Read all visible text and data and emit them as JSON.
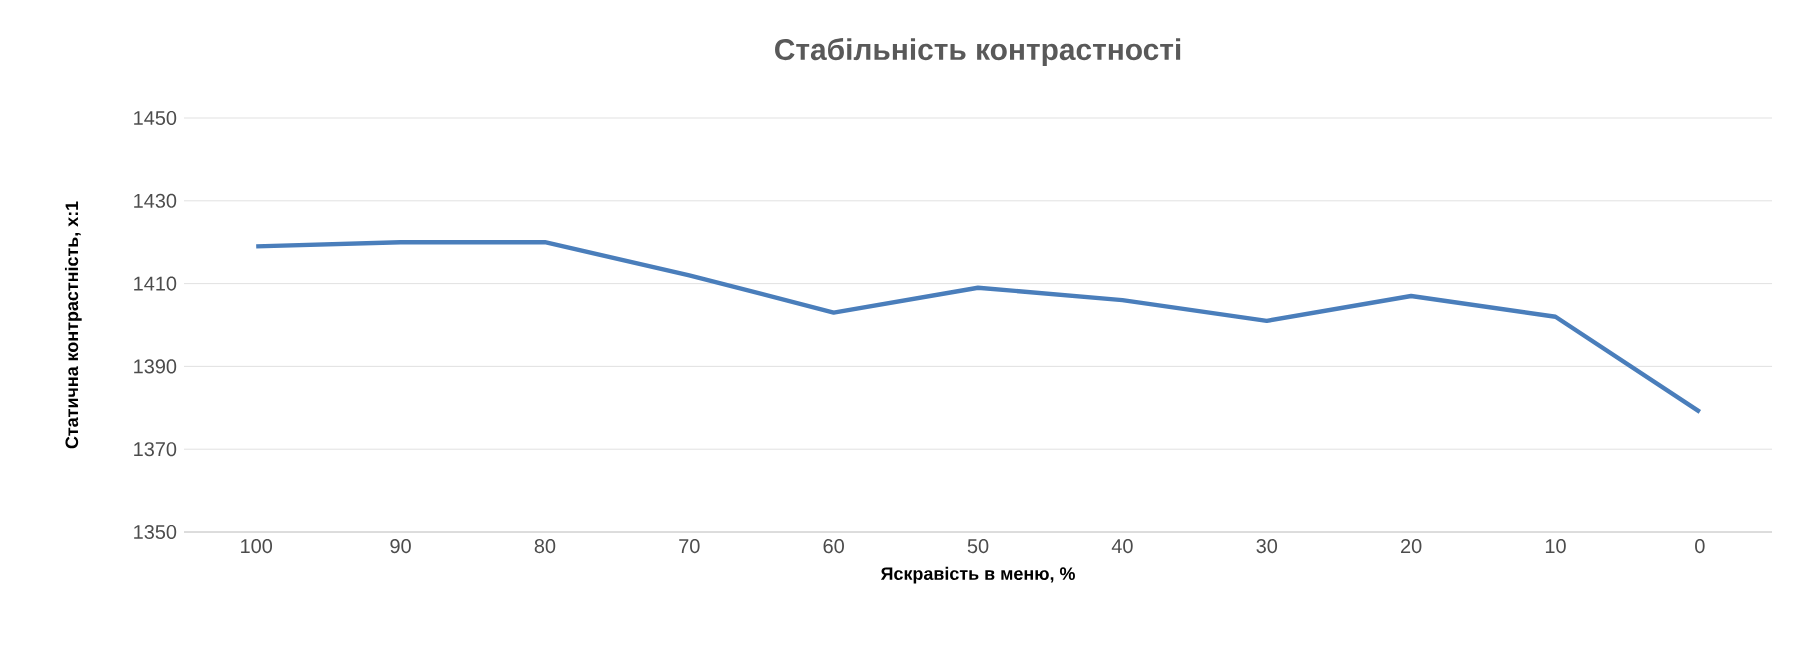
{
  "chart_data": {
    "type": "line",
    "title": "Стабільність контрастності",
    "xlabel": "Яскравість в меню, %",
    "ylabel": "Статична контрастність, x:1",
    "categories": [
      "100",
      "90",
      "80",
      "70",
      "60",
      "50",
      "40",
      "30",
      "20",
      "10",
      "0"
    ],
    "values": [
      1419,
      1420,
      1420,
      1412,
      1403,
      1409,
      1406,
      1401,
      1407,
      1402,
      1379
    ],
    "color": "#4a7ebb",
    "ylim": [
      1350,
      1450
    ],
    "yticks": [
      1350,
      1370,
      1390,
      1410,
      1430,
      1450
    ],
    "grid": "y",
    "marker": "none",
    "line_style": "solid"
  }
}
